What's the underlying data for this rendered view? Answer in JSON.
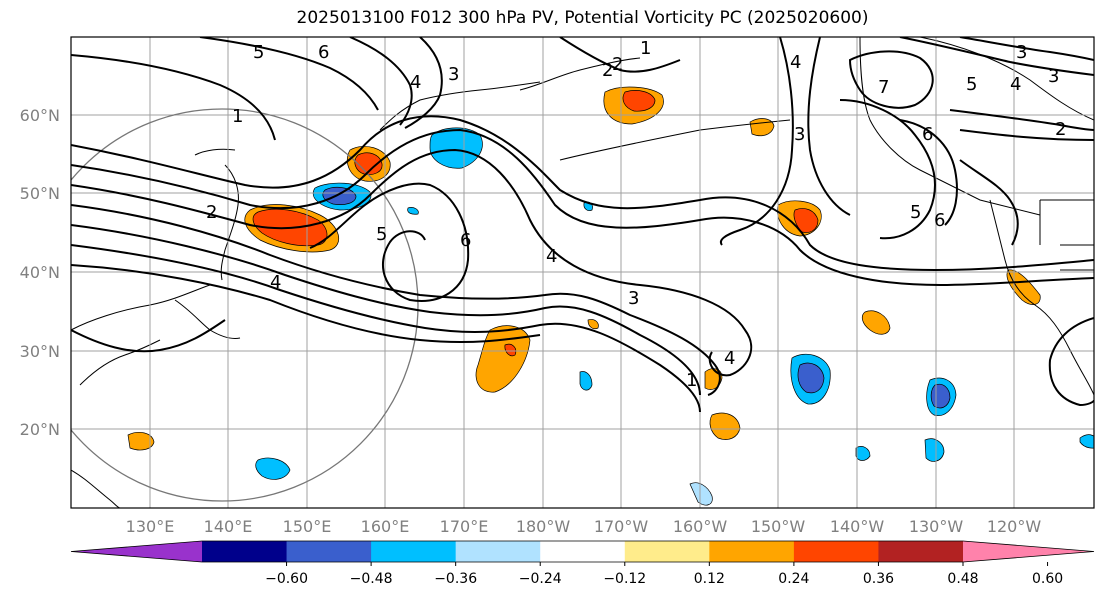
{
  "title": "2025013100 F012 300 hPa PV, Potential Vorticity PC (2025020600)",
  "map": {
    "lat_labels": [
      "60°N",
      "50°N",
      "40°N",
      "30°N",
      "20°N"
    ],
    "lon_labels": [
      "130°E",
      "140°E",
      "150°E",
      "160°E",
      "170°E",
      "180°W",
      "170°W",
      "160°W",
      "150°W",
      "140°W",
      "130°W",
      "120°W"
    ],
    "contour_labels": [
      "5",
      "6",
      "4",
      "3",
      "1",
      "2",
      "3",
      "1",
      "2",
      "4",
      "3",
      "7",
      "5",
      "4",
      "3",
      "2",
      "6",
      "5",
      "6",
      "5",
      "6",
      "4",
      "4",
      "3",
      "1",
      "4",
      "2"
    ]
  },
  "colorbar": {
    "tick_labels": [
      "−0.60",
      "−0.48",
      "−0.36",
      "−0.24",
      "−0.12",
      "0.12",
      "0.24",
      "0.36",
      "0.48",
      "0.60"
    ],
    "colors": [
      "#9932cc",
      "#00008b",
      "#3a5fcd",
      "#00bfff",
      "#b0e2ff",
      "#ffffff",
      "#ffec8b",
      "#ffa500",
      "#ff4500",
      "#b22222",
      "#ff82ab"
    ]
  }
}
